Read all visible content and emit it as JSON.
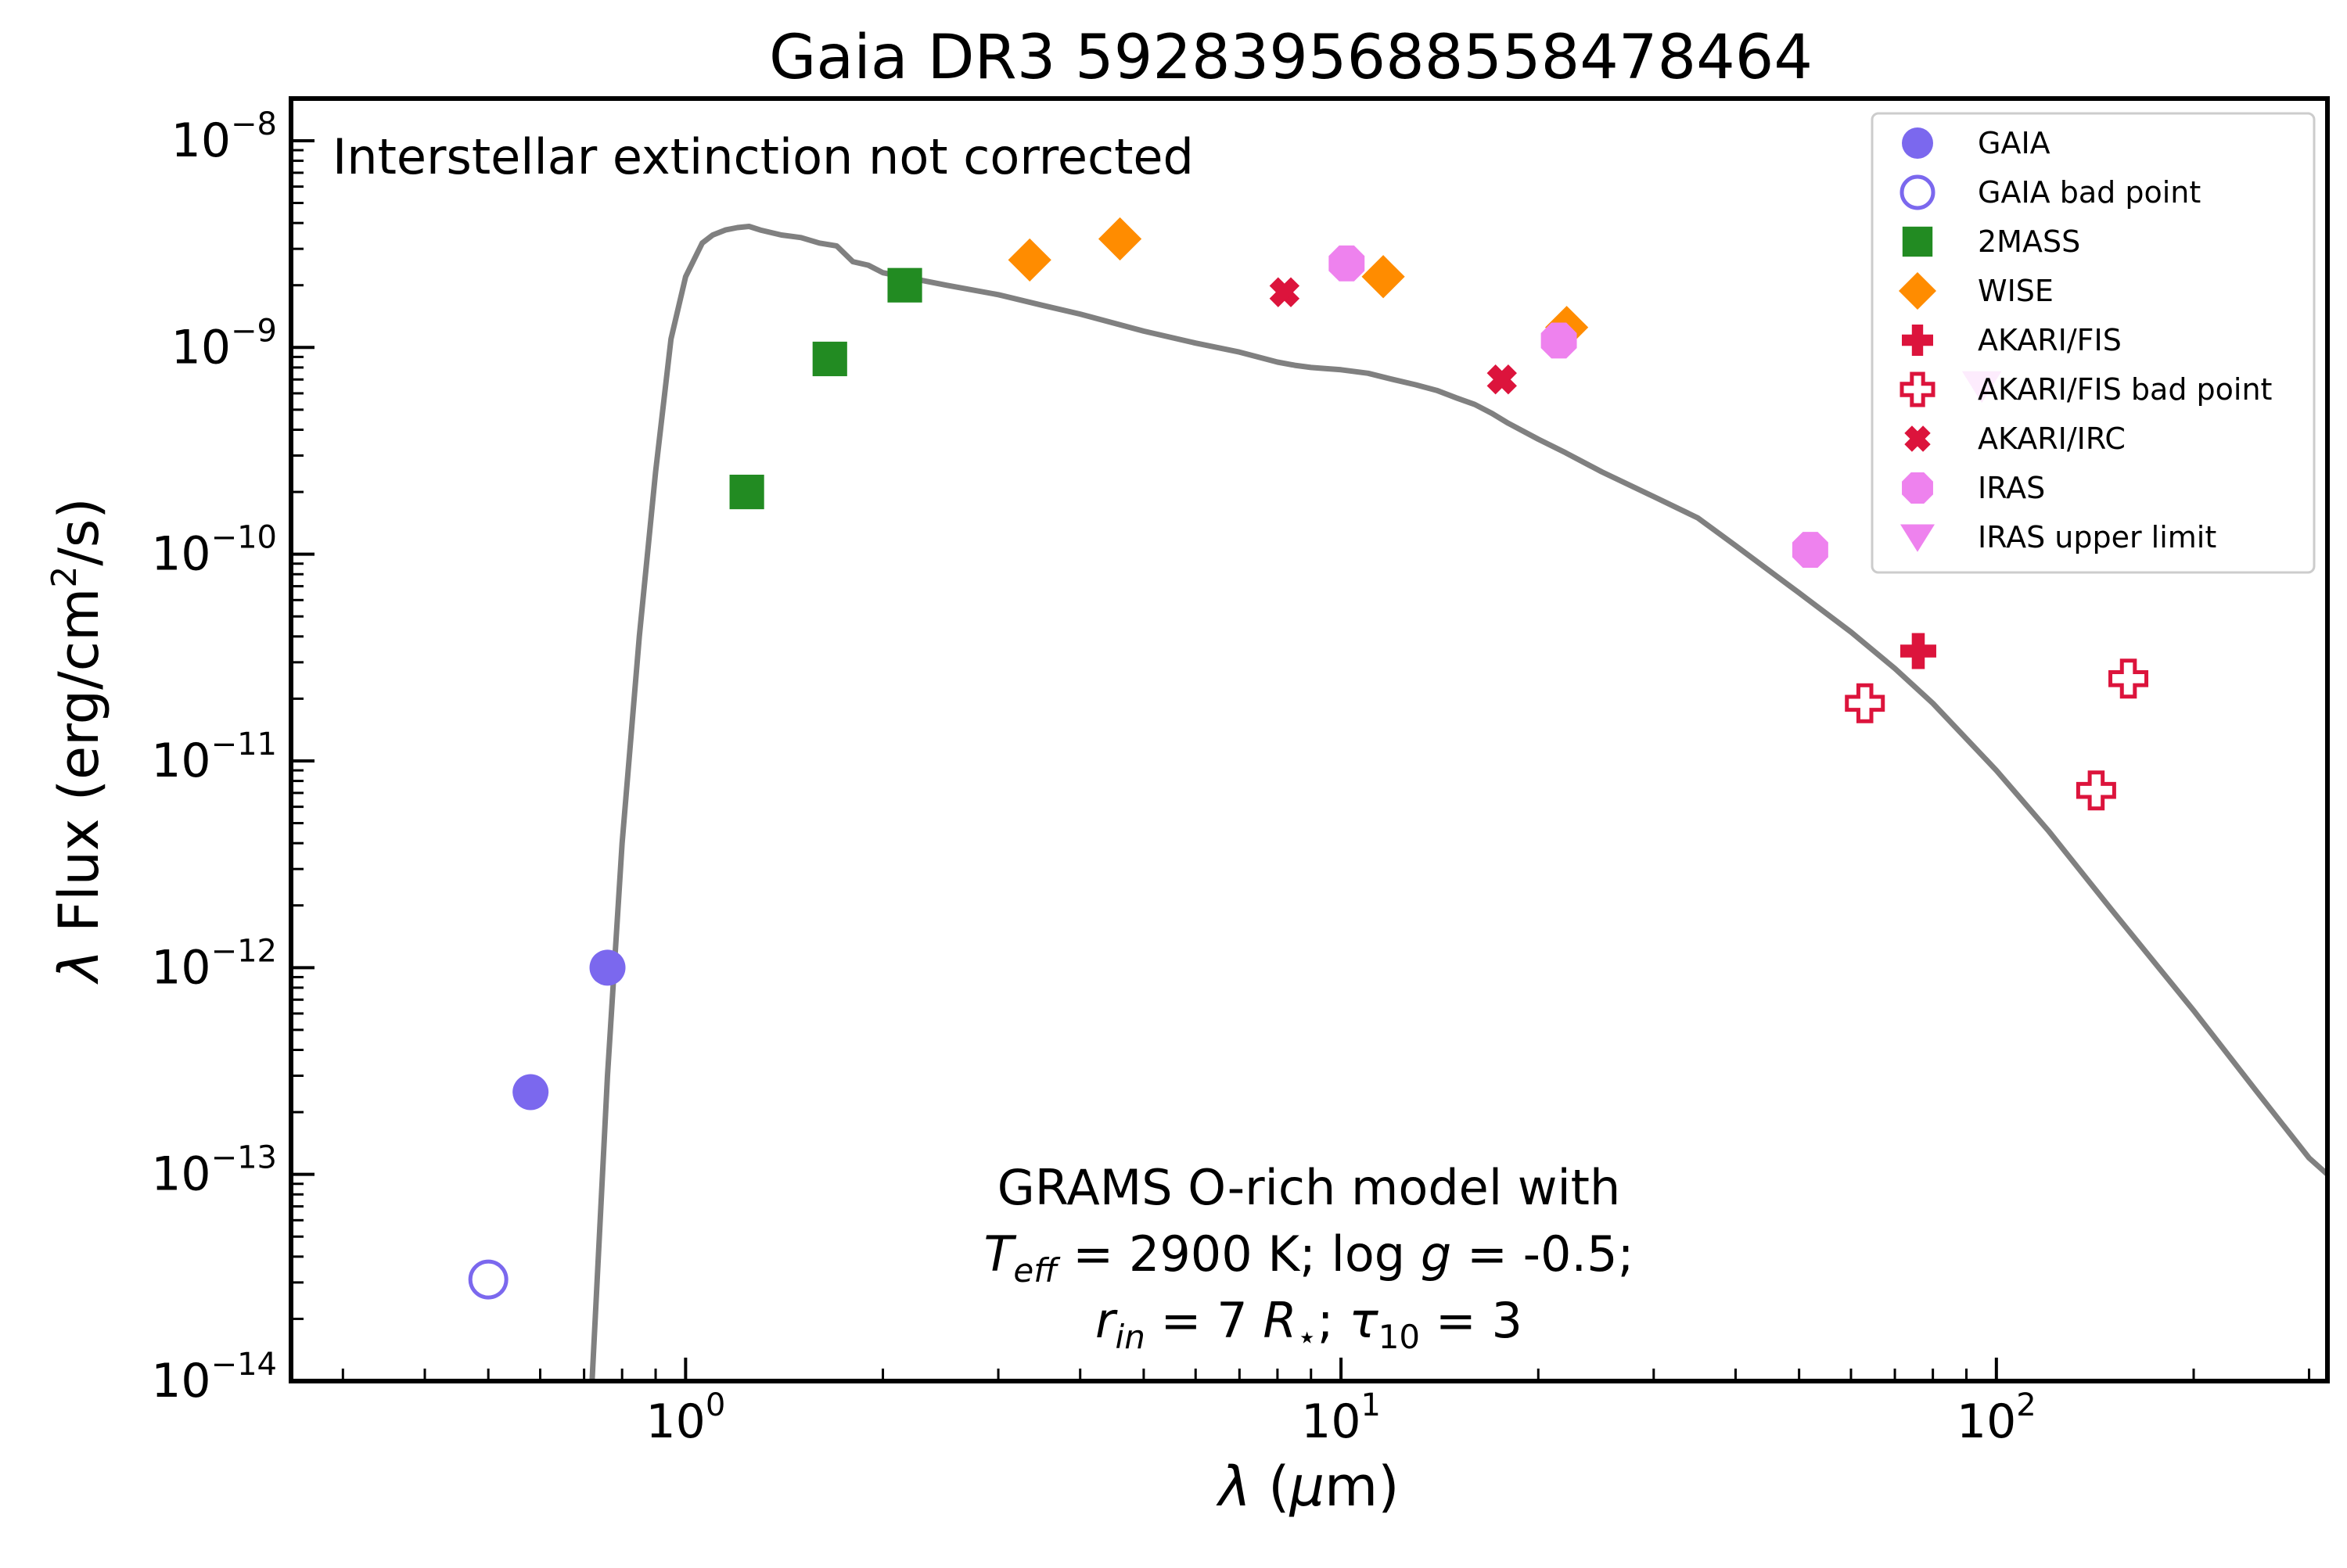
{
  "chart_data": {
    "type": "scatter",
    "title": "Gaia DR3 5928395688558478464",
    "xlabel": "λ (μm)",
    "ylabel": "λ Flux (erg/cm²/s)",
    "xscale": "log",
    "yscale": "log",
    "xlim": [
      0.25,
      320
    ],
    "ylim": [
      1e-14,
      1.6e-08
    ],
    "x_ticks": [
      {
        "value": 1,
        "base": "10",
        "exp": "0"
      },
      {
        "value": 10,
        "base": "10",
        "exp": "1"
      },
      {
        "value": 100,
        "base": "10",
        "exp": "2"
      }
    ],
    "y_ticks": [
      {
        "value": 1e-08,
        "base": "10",
        "exp": "−8"
      },
      {
        "value": 1e-09,
        "base": "10",
        "exp": "−9"
      },
      {
        "value": 1e-10,
        "base": "10",
        "exp": "−10"
      },
      {
        "value": 1e-11,
        "base": "10",
        "exp": "−11"
      },
      {
        "value": 1e-12,
        "base": "10",
        "exp": "−12"
      },
      {
        "value": 1e-13,
        "base": "10",
        "exp": "−13"
      },
      {
        "value": 1e-14,
        "base": "10",
        "exp": "−14"
      }
    ],
    "annotations": {
      "top_left": "Interstellar extinction not corrected",
      "model_line1": "GRAMS O-rich model with",
      "model_line2": "T_eff = 2900 K; log g = -0.5;",
      "model_line3": "r_in = 7 R⋆; τ_10 = 3",
      "l2_T": "T",
      "l2_eff": "eff",
      "l2_mid": " = 2900 K; log",
      "l2_g": "g",
      "l2_end": " = -0.5;",
      "l3_r": "r",
      "l3_in": "in",
      "l3_mid": " = 7 ",
      "l3_R": "R",
      "l3_star": "⋆",
      "l3_semi": "; ",
      "l3_tau": "τ",
      "l3_10": "10",
      "l3_end": " = 3"
    },
    "legend": {
      "placement": "top-right",
      "entries": [
        {
          "name": "GAIA",
          "marker": "circle",
          "color": "#7b68ee",
          "filled": true
        },
        {
          "name": "GAIA bad point",
          "marker": "circle",
          "color": "#7b68ee",
          "filled": false
        },
        {
          "name": "2MASS",
          "marker": "square",
          "color": "#228b22",
          "filled": true
        },
        {
          "name": "WISE",
          "marker": "diamond",
          "color": "#ff8c00",
          "filled": true
        },
        {
          "name": "AKARI/FIS",
          "marker": "plus",
          "color": "#dc143c",
          "filled": true
        },
        {
          "name": "AKARI/FIS bad point",
          "marker": "plus",
          "color": "#dc143c",
          "filled": false
        },
        {
          "name": "AKARI/IRC",
          "marker": "x",
          "color": "#dc143c",
          "filled": true
        },
        {
          "name": "IRAS",
          "marker": "octagon",
          "color": "#ee82ee",
          "filled": true
        },
        {
          "name": "IRAS upper limit",
          "marker": "triangle-down",
          "color": "#ee82ee",
          "filled": true
        }
      ]
    },
    "series": [
      {
        "name": "GAIA",
        "points": [
          [
            0.58,
            2.5e-13
          ],
          [
            0.76,
            1e-12
          ]
        ]
      },
      {
        "name": "GAIA bad point",
        "points": [
          [
            0.5,
            3.1e-14
          ]
        ]
      },
      {
        "name": "2MASS",
        "points": [
          [
            1.24,
            2e-10
          ],
          [
            1.66,
            8.8e-10
          ],
          [
            2.16,
            2e-09
          ]
        ]
      },
      {
        "name": "WISE",
        "points": [
          [
            3.35,
            2.65e-09
          ],
          [
            4.6,
            3.35e-09
          ],
          [
            11.6,
            2.2e-09
          ],
          [
            22.1,
            1.25e-09
          ]
        ]
      },
      {
        "name": "AKARI/FIS",
        "points": [
          [
            76,
            3.4e-11
          ]
        ]
      },
      {
        "name": "AKARI/FIS bad point",
        "points": [
          [
            63,
            1.9e-11
          ],
          [
            142,
            7.2e-12
          ],
          [
            159,
            2.5e-11
          ]
        ]
      },
      {
        "name": "AKARI/IRC",
        "points": [
          [
            8.2,
            1.85e-09
          ],
          [
            17.6,
            7e-10
          ]
        ]
      },
      {
        "name": "IRAS",
        "points": [
          [
            10.2,
            2.55e-09
          ],
          [
            21.5,
            1.08e-09
          ],
          [
            52,
            1.05e-10
          ]
        ]
      },
      {
        "name": "IRAS upper limit",
        "points": [
          [
            95,
            6.5e-10
          ]
        ]
      }
    ],
    "model_curve": {
      "color": "#808080",
      "points": [
        [
          0.72,
          1e-14
        ],
        [
          0.76,
          3e-13
        ],
        [
          0.8,
          4e-12
        ],
        [
          0.85,
          4e-11
        ],
        [
          0.9,
          2.5e-10
        ],
        [
          0.95,
          1.1e-09
        ],
        [
          1.0,
          2.2e-09
        ],
        [
          1.06,
          3.2e-09
        ],
        [
          1.1,
          3.5e-09
        ],
        [
          1.15,
          3.7e-09
        ],
        [
          1.2,
          3.8e-09
        ],
        [
          1.25,
          3.85e-09
        ],
        [
          1.3,
          3.7e-09
        ],
        [
          1.4,
          3.5e-09
        ],
        [
          1.5,
          3.4e-09
        ],
        [
          1.6,
          3.2e-09
        ],
        [
          1.7,
          3.1e-09
        ],
        [
          1.8,
          2.6e-09
        ],
        [
          1.9,
          2.5e-09
        ],
        [
          2.0,
          2.3e-09
        ],
        [
          2.5,
          2e-09
        ],
        [
          3.0,
          1.8e-09
        ],
        [
          3.5,
          1.6e-09
        ],
        [
          4.0,
          1.45e-09
        ],
        [
          5.0,
          1.2e-09
        ],
        [
          6.0,
          1.05e-09
        ],
        [
          7.0,
          9.5e-10
        ],
        [
          8.0,
          8.5e-10
        ],
        [
          8.5,
          8.2e-10
        ],
        [
          9.0,
          8e-10
        ],
        [
          9.5,
          7.9e-10
        ],
        [
          10.0,
          7.8e-10
        ],
        [
          11,
          7.5e-10
        ],
        [
          12,
          7e-10
        ],
        [
          13,
          6.6e-10
        ],
        [
          14,
          6.2e-10
        ],
        [
          15,
          5.7e-10
        ],
        [
          16,
          5.3e-10
        ],
        [
          17,
          4.8e-10
        ],
        [
          18,
          4.3e-10
        ],
        [
          20,
          3.6e-10
        ],
        [
          22,
          3.1e-10
        ],
        [
          25,
          2.5e-10
        ],
        [
          30,
          1.9e-10
        ],
        [
          35,
          1.5e-10
        ],
        [
          40,
          1.1e-10
        ],
        [
          50,
          6.5e-11
        ],
        [
          60,
          4.2e-11
        ],
        [
          70,
          2.8e-11
        ],
        [
          80,
          1.9e-11
        ],
        [
          100,
          9e-12
        ],
        [
          120,
          4.6e-12
        ],
        [
          150,
          1.9e-12
        ],
        [
          200,
          6.2e-13
        ],
        [
          250,
          2.5e-13
        ],
        [
          300,
          1.2e-13
        ],
        [
          320,
          1e-13
        ]
      ]
    }
  }
}
